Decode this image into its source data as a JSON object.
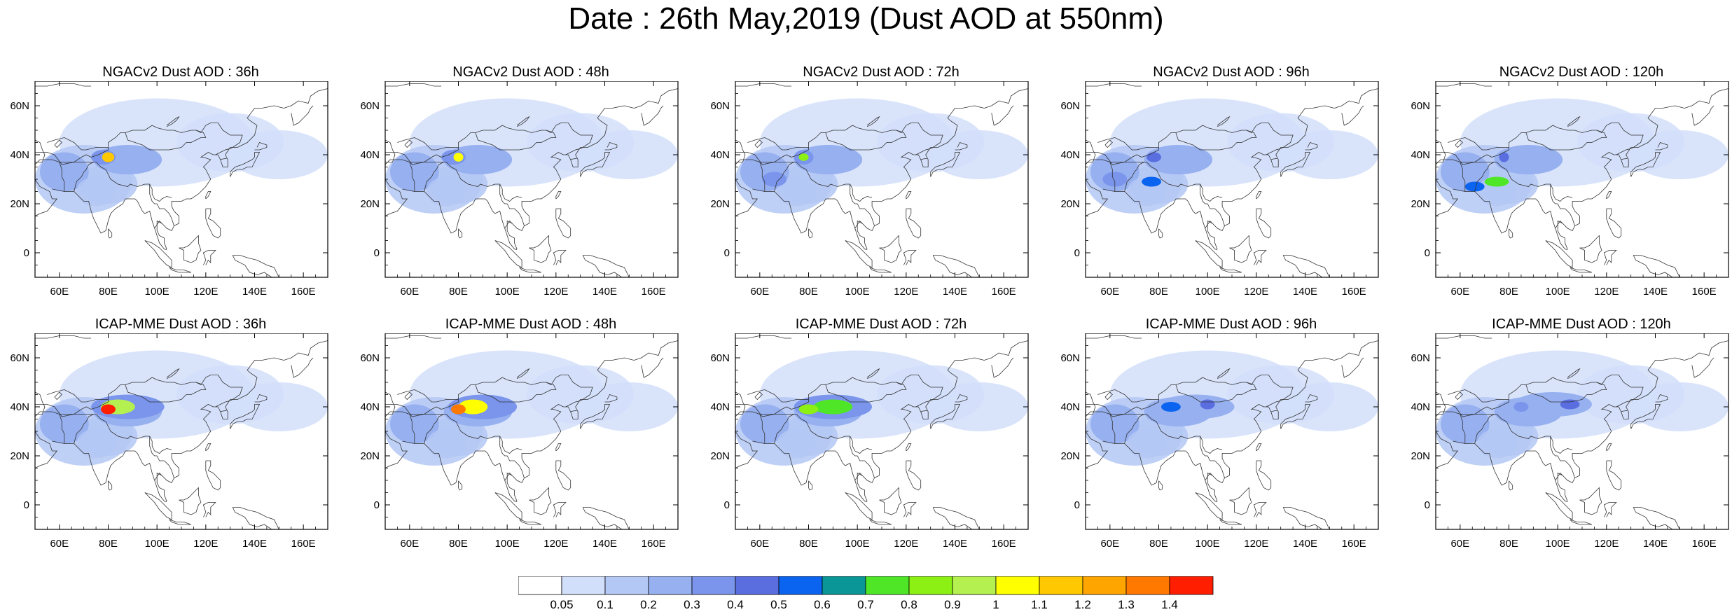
{
  "title": "Date : 26th May,2019 (Dust AOD at 550nm)",
  "map_extent": {
    "lon": [
      50,
      170
    ],
    "lat": [
      -10,
      70
    ]
  },
  "lat_ticks": [
    {
      "value": 60,
      "label": "60N"
    },
    {
      "value": 40,
      "label": "40N"
    },
    {
      "value": 20,
      "label": "20N"
    },
    {
      "value": 0,
      "label": "0"
    }
  ],
  "lon_ticks": [
    {
      "value": 60,
      "label": "60E"
    },
    {
      "value": 80,
      "label": "80E"
    },
    {
      "value": 100,
      "label": "100E"
    },
    {
      "value": 120,
      "label": "120E"
    },
    {
      "value": 140,
      "label": "140E"
    },
    {
      "value": 160,
      "label": "160E"
    }
  ],
  "panels": [
    {
      "title": "NGACv2 Dust AOD : 36h",
      "model": "NGACv2",
      "lead_h": 36
    },
    {
      "title": "NGACv2 Dust AOD : 48h",
      "model": "NGACv2",
      "lead_h": 48
    },
    {
      "title": "NGACv2 Dust AOD : 72h",
      "model": "NGACv2",
      "lead_h": 72
    },
    {
      "title": "NGACv2 Dust AOD : 96h",
      "model": "NGACv2",
      "lead_h": 96
    },
    {
      "title": "NGACv2 Dust AOD : 120h",
      "model": "NGACv2",
      "lead_h": 120
    },
    {
      "title": "ICAP-MME Dust AOD : 36h",
      "model": "ICAP-MME",
      "lead_h": 36
    },
    {
      "title": "ICAP-MME Dust AOD : 48h",
      "model": "ICAP-MME",
      "lead_h": 48
    },
    {
      "title": "ICAP-MME Dust AOD : 72h",
      "model": "ICAP-MME",
      "lead_h": 72
    },
    {
      "title": "ICAP-MME Dust AOD : 96h",
      "model": "ICAP-MME",
      "lead_h": 96
    },
    {
      "title": "ICAP-MME Dust AOD : 120h",
      "model": "ICAP-MME",
      "lead_h": 120
    }
  ],
  "colorbar": {
    "colors": [
      "#ffffff",
      "#d2dffa",
      "#b4c8f5",
      "#96b0f0",
      "#7a95eb",
      "#5a6ee0",
      "#0a64f0",
      "#0a9696",
      "#50e628",
      "#8cf014",
      "#b4f050",
      "#ffff00",
      "#ffc800",
      "#ffa500",
      "#ff7800",
      "#ff1e00"
    ],
    "labels": [
      "0.05",
      "0.1",
      "0.2",
      "0.3",
      "0.4",
      "0.5",
      "0.6",
      "0.7",
      "0.8",
      "0.9",
      "1",
      "1.1",
      "1.2",
      "1.3",
      "1.4"
    ]
  }
}
